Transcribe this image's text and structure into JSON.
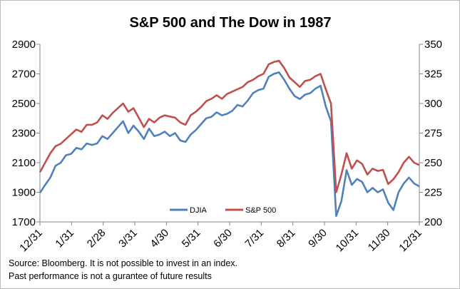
{
  "chart_data": {
    "type": "line",
    "title": "S&P 500 and The Dow in 1987",
    "x_tick_labels": [
      "12/31",
      "1/31",
      "2/28",
      "3/31",
      "4/30",
      "5/31",
      "6/30",
      "7/31",
      "8/31",
      "9/30",
      "10/31",
      "11/30",
      "12/31"
    ],
    "y_left": {
      "ticks": [
        1700,
        1900,
        2100,
        2300,
        2500,
        2700,
        2900
      ],
      "range": [
        1700,
        2900
      ]
    },
    "y_right": {
      "ticks": [
        200,
        225,
        250,
        275,
        300,
        325,
        350
      ],
      "range": [
        200,
        350
      ]
    },
    "legend_position": "bottom-center",
    "grid": false,
    "series": [
      {
        "name": "DJIA",
        "axis": "left",
        "color": "#4f81bd",
        "x": [
          "12/31",
          "1/5",
          "1/10",
          "1/15",
          "1/20",
          "1/25",
          "1/31",
          "2/5",
          "2/10",
          "2/15",
          "2/20",
          "2/28",
          "3/5",
          "3/10",
          "3/15",
          "3/20",
          "3/25",
          "3/31",
          "4/5",
          "4/10",
          "4/15",
          "4/20",
          "4/25",
          "4/30",
          "5/5",
          "5/10",
          "5/15",
          "5/20",
          "5/25",
          "5/31",
          "6/5",
          "6/10",
          "6/15",
          "6/20",
          "6/25",
          "6/30",
          "7/5",
          "7/10",
          "7/15",
          "7/20",
          "7/25",
          "7/31",
          "8/5",
          "8/10",
          "8/15",
          "8/20",
          "8/25",
          "8/31",
          "9/5",
          "9/10",
          "9/15",
          "9/20",
          "9/25",
          "9/30",
          "10/5",
          "10/10",
          "10/15",
          "10/19",
          "10/20",
          "10/21",
          "10/25",
          "10/31",
          "11/5",
          "11/10",
          "11/15",
          "11/20",
          "11/25",
          "11/30",
          "12/4",
          "12/10",
          "12/15",
          "12/20",
          "12/25",
          "12/31"
        ],
        "values": [
          1896,
          1950,
          2000,
          2080,
          2100,
          2150,
          2160,
          2200,
          2190,
          2230,
          2220,
          2230,
          2280,
          2260,
          2300,
          2340,
          2380,
          2300,
          2350,
          2310,
          2260,
          2330,
          2280,
          2290,
          2310,
          2280,
          2300,
          2250,
          2240,
          2290,
          2320,
          2360,
          2400,
          2410,
          2440,
          2420,
          2430,
          2450,
          2490,
          2480,
          2520,
          2570,
          2590,
          2600,
          2680,
          2700,
          2710,
          2660,
          2600,
          2550,
          2530,
          2560,
          2570,
          2600,
          2620,
          2480,
          2380,
          1740,
          1840,
          2050,
          1950,
          1990,
          1970,
          1900,
          1930,
          1900,
          1920,
          1830,
          1780,
          1900,
          1960,
          2000,
          1960,
          1940
        ]
      },
      {
        "name": "S&P 500",
        "axis": "right",
        "color": "#c0504d",
        "x": [
          "12/31",
          "1/5",
          "1/10",
          "1/15",
          "1/20",
          "1/25",
          "1/31",
          "2/5",
          "2/10",
          "2/15",
          "2/20",
          "2/28",
          "3/5",
          "3/10",
          "3/15",
          "3/20",
          "3/25",
          "3/31",
          "4/5",
          "4/10",
          "4/15",
          "4/20",
          "4/25",
          "4/30",
          "5/5",
          "5/10",
          "5/15",
          "5/20",
          "5/25",
          "5/31",
          "6/5",
          "6/10",
          "6/15",
          "6/20",
          "6/25",
          "6/30",
          "7/5",
          "7/10",
          "7/15",
          "7/20",
          "7/25",
          "7/31",
          "8/5",
          "8/10",
          "8/15",
          "8/20",
          "8/25",
          "8/31",
          "9/5",
          "9/10",
          "9/15",
          "9/20",
          "9/25",
          "9/30",
          "10/5",
          "10/10",
          "10/15",
          "10/19",
          "10/20",
          "10/21",
          "10/25",
          "10/31",
          "11/5",
          "11/10",
          "11/15",
          "11/20",
          "11/25",
          "11/30",
          "12/4",
          "12/10",
          "12/15",
          "12/20",
          "12/25",
          "12/31"
        ],
        "values": [
          242,
          250,
          258,
          264,
          266,
          270,
          274,
          278,
          276,
          282,
          282,
          284,
          290,
          287,
          292,
          296,
          300,
          293,
          296,
          288,
          280,
          287,
          284,
          288,
          290,
          289,
          288,
          284,
          282,
          290,
          293,
          297,
          302,
          304,
          307,
          304,
          308,
          310,
          312,
          314,
          318,
          320,
          323,
          325,
          333,
          335,
          336,
          330,
          322,
          318,
          314,
          319,
          320,
          323,
          325,
          312,
          300,
          225,
          240,
          258,
          245,
          252,
          249,
          240,
          245,
          243,
          244,
          232,
          236,
          242,
          250,
          255,
          250,
          248
        ]
      }
    ]
  },
  "footer": {
    "source_line": "Source: Bloomberg. It is not possible to invest in an index.",
    "disclaimer_line": "Past performance is not a gurantee of future results"
  }
}
